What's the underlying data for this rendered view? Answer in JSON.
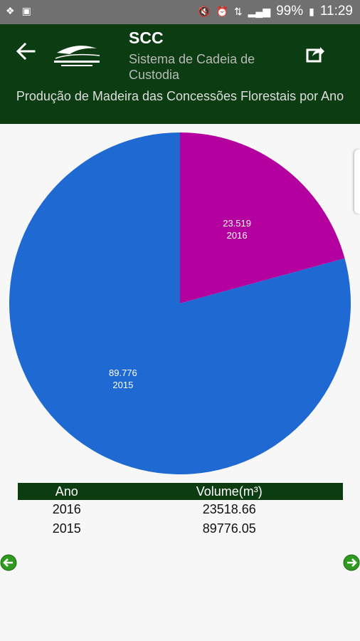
{
  "status_bar": {
    "left_icons": [
      "dropbox-icon",
      "gallery-icon"
    ],
    "right_icons": [
      "mute-icon",
      "alarm-icon",
      "data-icon",
      "signal-icon",
      "battery-icon"
    ],
    "battery": "99%",
    "time": "11:29"
  },
  "app_bar": {
    "title": "SCC",
    "subtitle": "Sistema de Cadeia de Custodia",
    "logo": "Serviço Florestal Brasileiro logo"
  },
  "header": {
    "title": "Produção de Madeira das Concessões Florestais por Ano"
  },
  "chart_data": {
    "type": "pie",
    "slices": [
      {
        "label": "2016",
        "value": 23.519,
        "value_label": "23.519",
        "color": "#b3009f"
      },
      {
        "label": "2015",
        "value": 89.776,
        "value_label": "89.776",
        "color": "#1f69d2"
      }
    ]
  },
  "table": {
    "headers": [
      "Ano",
      "Volume(m³)"
    ],
    "rows": [
      [
        "2016",
        "23518.66"
      ],
      [
        "2015",
        "89776.05"
      ]
    ]
  },
  "colors": {
    "brand_green": "#0c3d12",
    "nav_green": "#2f9a1f"
  }
}
